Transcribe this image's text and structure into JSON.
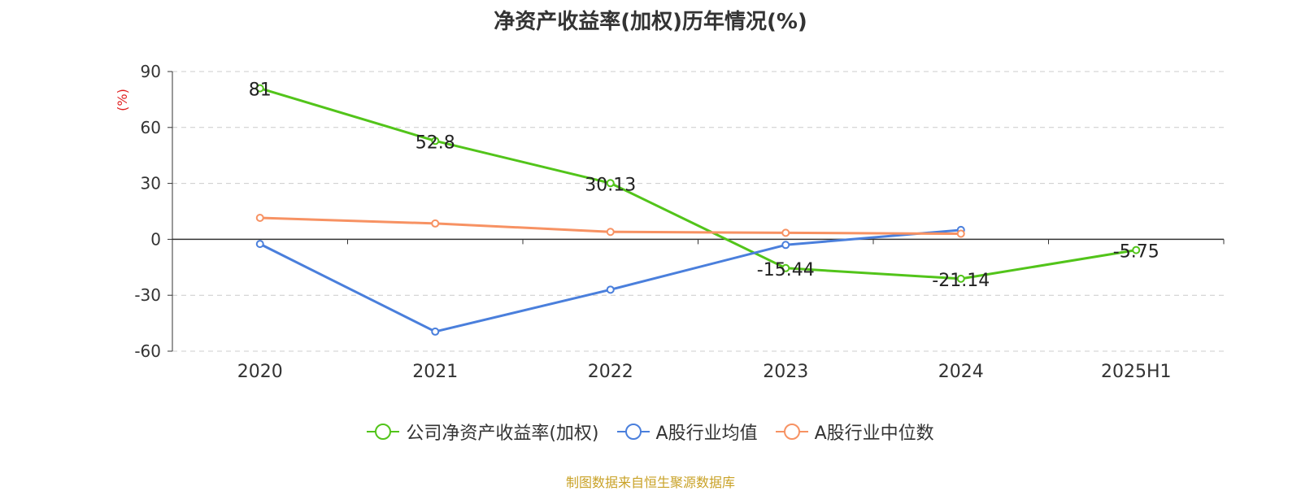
{
  "chart_data": {
    "type": "line",
    "title": "净资产收益率(加权)历年情况(%)",
    "ylabel": "(%)",
    "categories": [
      "2020",
      "2021",
      "2022",
      "2023",
      "2024",
      "2025H1"
    ],
    "yticks": [
      90,
      60,
      30,
      0,
      -30,
      -60
    ],
    "ylim": [
      -60,
      90
    ],
    "grid": true,
    "legend_position": "bottom",
    "series": [
      {
        "name": "公司净资产收益率(加权)",
        "color": "#52c41a",
        "values": [
          81,
          52.8,
          30.13,
          -15.44,
          -21.14,
          -5.75
        ],
        "labels": [
          "81",
          "52.8",
          "30.13",
          "-15.44",
          "-21.14",
          "-5.75"
        ]
      },
      {
        "name": "A股行业均值",
        "color": "#4a7fdc",
        "values": [
          -2.5,
          -49.5,
          -27,
          -3,
          5,
          null
        ]
      },
      {
        "name": "A股行业中位数",
        "color": "#f79263",
        "values": [
          11.5,
          8.5,
          4,
          3.5,
          3,
          null
        ]
      }
    ]
  },
  "source": "制图数据来自恒生聚源数据库"
}
